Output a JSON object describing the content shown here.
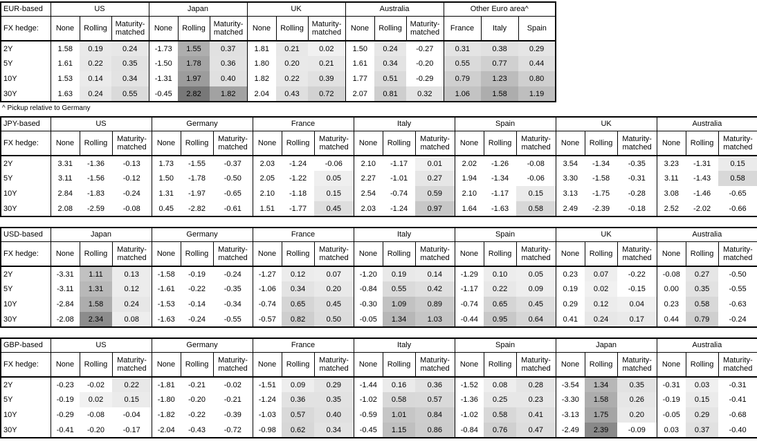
{
  "labels": {
    "fx_hedge": "FX hedge:"
  },
  "tenors": [
    "2Y",
    "5Y",
    "10Y",
    "30Y"
  ],
  "hedge_columns": [
    "None",
    "Rolling",
    "Maturity-matched"
  ],
  "shading": {
    "min_positive": 0.005,
    "base": 0.1,
    "scale_max": 3.1,
    "dark_gray": 120
  },
  "colors": {
    "border": "#000000",
    "background": "#ffffff",
    "text": "#000000"
  },
  "tables": [
    {
      "id": "eur-based",
      "base_label": "EUR-based",
      "full_width": false,
      "footnote": "^ Pickup relative to Germany",
      "groups": [
        {
          "name": "US",
          "columns": [
            "None",
            "Rolling",
            "Maturity-matched"
          ],
          "shaded": [
            false,
            true,
            true
          ],
          "values": [
            [
              1.58,
              0.19,
              0.24
            ],
            [
              1.61,
              0.22,
              0.35
            ],
            [
              1.53,
              0.14,
              0.34
            ],
            [
              1.63,
              0.24,
              0.55
            ]
          ]
        },
        {
          "name": "Japan",
          "columns": [
            "None",
            "Rolling",
            "Maturity-matched"
          ],
          "shaded": [
            false,
            true,
            true
          ],
          "values": [
            [
              -1.73,
              1.55,
              0.37
            ],
            [
              -1.5,
              1.78,
              0.36
            ],
            [
              -1.31,
              1.97,
              0.4
            ],
            [
              -0.45,
              2.82,
              1.82
            ]
          ]
        },
        {
          "name": "UK",
          "columns": [
            "None",
            "Rolling",
            "Maturity-matched"
          ],
          "shaded": [
            false,
            true,
            true
          ],
          "values": [
            [
              1.81,
              0.21,
              0.02
            ],
            [
              1.8,
              0.2,
              0.21
            ],
            [
              1.82,
              0.22,
              0.39
            ],
            [
              2.04,
              0.43,
              0.72
            ]
          ]
        },
        {
          "name": "Australia",
          "columns": [
            "None",
            "Rolling",
            "Maturity-matched"
          ],
          "shaded": [
            false,
            true,
            true
          ],
          "values": [
            [
              1.5,
              0.24,
              -0.27
            ],
            [
              1.61,
              0.34,
              -0.2
            ],
            [
              1.77,
              0.51,
              -0.29
            ],
            [
              2.07,
              0.81,
              0.32
            ]
          ]
        },
        {
          "name": "Other Euro area^",
          "columns": [
            "France",
            "Italy",
            "Spain"
          ],
          "shaded": [
            true,
            true,
            true
          ],
          "values": [
            [
              0.31,
              0.38,
              0.29
            ],
            [
              0.55,
              0.77,
              0.44
            ],
            [
              0.79,
              1.23,
              0.8
            ],
            [
              1.06,
              1.58,
              1.19
            ]
          ]
        }
      ]
    },
    {
      "id": "jpy-based",
      "base_label": "JPY-based",
      "full_width": true,
      "groups": [
        {
          "name": "US",
          "columns": [
            "None",
            "Rolling",
            "Maturity-matched"
          ],
          "shaded": [
            false,
            true,
            true
          ],
          "values": [
            [
              3.31,
              -1.36,
              -0.13
            ],
            [
              3.11,
              -1.56,
              -0.12
            ],
            [
              2.84,
              -1.83,
              -0.24
            ],
            [
              2.08,
              -2.59,
              -0.08
            ]
          ]
        },
        {
          "name": "Germany",
          "columns": [
            "None",
            "Rolling",
            "Maturity-matched"
          ],
          "shaded": [
            false,
            true,
            true
          ],
          "values": [
            [
              1.73,
              -1.55,
              -0.37
            ],
            [
              1.5,
              -1.78,
              -0.5
            ],
            [
              1.31,
              -1.97,
              -0.65
            ],
            [
              0.45,
              -2.82,
              -0.61
            ]
          ]
        },
        {
          "name": "France",
          "columns": [
            "None",
            "Rolling",
            "Maturity-matched"
          ],
          "shaded": [
            false,
            true,
            true
          ],
          "values": [
            [
              2.03,
              -1.24,
              -0.06
            ],
            [
              2.05,
              -1.22,
              0.05
            ],
            [
              2.1,
              -1.18,
              0.15
            ],
            [
              1.51,
              -1.77,
              0.45
            ]
          ]
        },
        {
          "name": "Italy",
          "columns": [
            "None",
            "Rolling",
            "Maturity-matched"
          ],
          "shaded": [
            false,
            true,
            true
          ],
          "values": [
            [
              2.1,
              -1.17,
              0.01
            ],
            [
              2.27,
              -1.01,
              0.27
            ],
            [
              2.54,
              -0.74,
              0.59
            ],
            [
              2.03,
              -1.24,
              0.97
            ]
          ]
        },
        {
          "name": "Spain",
          "columns": [
            "None",
            "Rolling",
            "Maturity-matched"
          ],
          "shaded": [
            false,
            true,
            true
          ],
          "values": [
            [
              2.02,
              -1.26,
              -0.08
            ],
            [
              1.94,
              -1.34,
              -0.06
            ],
            [
              2.1,
              -1.17,
              0.15
            ],
            [
              1.64,
              -1.63,
              0.58
            ]
          ]
        },
        {
          "name": "UK",
          "columns": [
            "None",
            "Rolling",
            "Maturity-matched"
          ],
          "shaded": [
            false,
            true,
            true
          ],
          "values": [
            [
              3.54,
              -1.34,
              -0.35
            ],
            [
              3.3,
              -1.58,
              -0.31
            ],
            [
              3.13,
              -1.75,
              -0.28
            ],
            [
              2.49,
              -2.39,
              -0.18
            ]
          ]
        },
        {
          "name": "Australia",
          "columns": [
            "None",
            "Rolling",
            "Maturity-matched"
          ],
          "shaded": [
            false,
            true,
            true
          ],
          "values": [
            [
              3.23,
              -1.31,
              0.15
            ],
            [
              3.11,
              -1.43,
              0.58
            ],
            [
              3.08,
              -1.46,
              -0.65
            ],
            [
              2.52,
              -2.02,
              -0.66
            ]
          ]
        }
      ]
    },
    {
      "id": "usd-based",
      "base_label": "USD-based",
      "full_width": true,
      "groups": [
        {
          "name": "Japan",
          "columns": [
            "None",
            "Rolling",
            "Maturity-matched"
          ],
          "shaded": [
            false,
            true,
            true
          ],
          "values": [
            [
              -3.31,
              1.11,
              0.13
            ],
            [
              -3.11,
              1.31,
              0.12
            ],
            [
              -2.84,
              1.58,
              0.24
            ],
            [
              -2.08,
              2.34,
              0.08
            ]
          ]
        },
        {
          "name": "Germany",
          "columns": [
            "None",
            "Rolling",
            "Maturity-matched"
          ],
          "shaded": [
            false,
            true,
            true
          ],
          "values": [
            [
              -1.58,
              -0.19,
              -0.24
            ],
            [
              -1.61,
              -0.22,
              -0.35
            ],
            [
              -1.53,
              -0.14,
              -0.34
            ],
            [
              -1.63,
              -0.24,
              -0.55
            ]
          ]
        },
        {
          "name": "France",
          "columns": [
            "None",
            "Rolling",
            "Maturity-matched"
          ],
          "shaded": [
            false,
            true,
            true
          ],
          "values": [
            [
              -1.27,
              0.12,
              0.07
            ],
            [
              -1.06,
              0.34,
              0.2
            ],
            [
              -0.74,
              0.65,
              0.45
            ],
            [
              -0.57,
              0.82,
              0.5
            ]
          ]
        },
        {
          "name": "Italy",
          "columns": [
            "None",
            "Rolling",
            "Maturity-matched"
          ],
          "shaded": [
            false,
            true,
            true
          ],
          "values": [
            [
              -1.2,
              0.19,
              0.14
            ],
            [
              -0.84,
              0.55,
              0.42
            ],
            [
              -0.3,
              1.09,
              0.89
            ],
            [
              -0.05,
              1.34,
              1.03
            ]
          ]
        },
        {
          "name": "Spain",
          "columns": [
            "None",
            "Rolling",
            "Maturity-matched"
          ],
          "shaded": [
            false,
            true,
            true
          ],
          "values": [
            [
              -1.29,
              0.1,
              0.05
            ],
            [
              -1.17,
              0.22,
              0.09
            ],
            [
              -0.74,
              0.65,
              0.45
            ],
            [
              -0.44,
              0.95,
              0.64
            ]
          ]
        },
        {
          "name": "UK",
          "columns": [
            "None",
            "Rolling",
            "Maturity-matched"
          ],
          "shaded": [
            false,
            true,
            true
          ],
          "values": [
            [
              0.23,
              0.07,
              -0.22
            ],
            [
              0.19,
              0.02,
              -0.15
            ],
            [
              0.29,
              0.12,
              0.04
            ],
            [
              0.41,
              0.24,
              0.17
            ]
          ]
        },
        {
          "name": "Australia",
          "columns": [
            "None",
            "Rolling",
            "Maturity-matched"
          ],
          "shaded": [
            false,
            true,
            true
          ],
          "values": [
            [
              -0.08,
              0.27,
              -0.5
            ],
            [
              0.0,
              0.35,
              -0.55
            ],
            [
              0.23,
              0.58,
              -0.63
            ],
            [
              0.44,
              0.79,
              -0.24
            ]
          ]
        }
      ]
    },
    {
      "id": "gbp-based",
      "base_label": "GBP-based",
      "full_width": true,
      "groups": [
        {
          "name": "US",
          "columns": [
            "None",
            "Rolling",
            "Maturity-matched"
          ],
          "shaded": [
            false,
            true,
            true
          ],
          "values": [
            [
              -0.23,
              -0.02,
              0.22
            ],
            [
              -0.19,
              0.02,
              0.15
            ],
            [
              -0.29,
              -0.08,
              -0.04
            ],
            [
              -0.41,
              -0.2,
              -0.17
            ]
          ]
        },
        {
          "name": "Germany",
          "columns": [
            "None",
            "Rolling",
            "Maturity-matched"
          ],
          "shaded": [
            false,
            true,
            true
          ],
          "values": [
            [
              -1.81,
              -0.21,
              -0.02
            ],
            [
              -1.8,
              -0.2,
              -0.21
            ],
            [
              -1.82,
              -0.22,
              -0.39
            ],
            [
              -2.04,
              -0.43,
              -0.72
            ]
          ]
        },
        {
          "name": "France",
          "columns": [
            "None",
            "Rolling",
            "Maturity-matched"
          ],
          "shaded": [
            false,
            true,
            true
          ],
          "values": [
            [
              -1.51,
              0.09,
              0.29
            ],
            [
              -1.24,
              0.36,
              0.35
            ],
            [
              -1.03,
              0.57,
              0.4
            ],
            [
              -0.98,
              0.62,
              0.34
            ]
          ]
        },
        {
          "name": "Italy",
          "columns": [
            "None",
            "Rolling",
            "Maturity-matched"
          ],
          "shaded": [
            false,
            true,
            true
          ],
          "values": [
            [
              -1.44,
              0.16,
              0.36
            ],
            [
              -1.02,
              0.58,
              0.57
            ],
            [
              -0.59,
              1.01,
              0.84
            ],
            [
              -0.45,
              1.15,
              0.86
            ]
          ]
        },
        {
          "name": "Spain",
          "columns": [
            "None",
            "Rolling",
            "Maturity-matched"
          ],
          "shaded": [
            false,
            true,
            true
          ],
          "values": [
            [
              -1.52,
              0.08,
              0.28
            ],
            [
              -1.36,
              0.25,
              0.23
            ],
            [
              -1.02,
              0.58,
              0.41
            ],
            [
              -0.84,
              0.76,
              0.47
            ]
          ]
        },
        {
          "name": "Japan",
          "columns": [
            "None",
            "Rolling",
            "Maturity-matched"
          ],
          "shaded": [
            false,
            true,
            true
          ],
          "values": [
            [
              -3.54,
              1.34,
              0.35
            ],
            [
              -3.3,
              1.58,
              0.26
            ],
            [
              -3.13,
              1.75,
              0.2
            ],
            [
              -2.49,
              2.39,
              -0.09
            ]
          ]
        },
        {
          "name": "Australia",
          "columns": [
            "None",
            "Rolling",
            "Maturity-matched"
          ],
          "shaded": [
            false,
            true,
            true
          ],
          "values": [
            [
              -0.31,
              0.03,
              -0.31
            ],
            [
              -0.19,
              0.15,
              -0.41
            ],
            [
              -0.05,
              0.29,
              -0.68
            ],
            [
              0.03,
              0.37,
              -0.4
            ]
          ]
        }
      ]
    }
  ]
}
